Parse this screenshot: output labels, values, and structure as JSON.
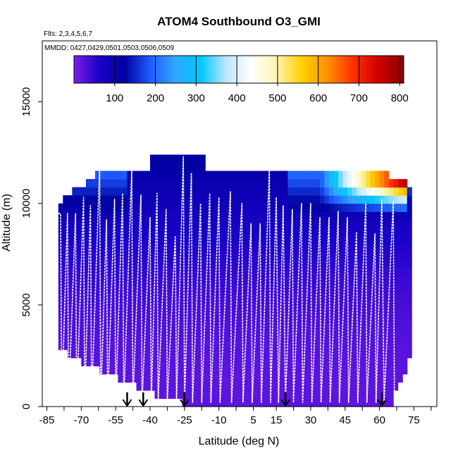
{
  "chart_data": {
    "type": "heatmap",
    "title": "ATOM4 Southbound O3_GMI",
    "subtitle_flights": "Flts: 2,3,4,5,6,7",
    "subtitle_dates": "MMDD: 0427,0429,0501,0503,0506,0509",
    "xlabel": "Latitude (deg N)",
    "ylabel": "Altitude (m)",
    "xlim": [
      -87,
      85
    ],
    "ylim": [
      0,
      18000
    ],
    "x_ticks": [
      -85,
      -70,
      -55,
      -40,
      -25,
      -10,
      5,
      15,
      30,
      45,
      60,
      75
    ],
    "x_minor_ticks": [
      -77.5,
      -62.5,
      -47.5,
      -32.5,
      -17.5,
      -2.5,
      22.5,
      37.5,
      52.5,
      67.5,
      82.5
    ],
    "y_ticks": [
      0,
      5000,
      10000,
      15000
    ],
    "colorbar": {
      "ticks": [
        100,
        200,
        300,
        400,
        500,
        600,
        700,
        800
      ],
      "range": [
        0,
        810
      ],
      "colors": [
        "#7b1fe8",
        "#1a00c8",
        "#0000a0",
        "#1e5bff",
        "#2fa8ff",
        "#00c8ff",
        "#bfe6ff",
        "#ffffff",
        "#fff4b0",
        "#ffd000",
        "#ff9000",
        "#ff3000",
        "#d00000",
        "#8b0000"
      ]
    },
    "curtain": {
      "lat_range": [
        -80,
        73
      ],
      "top_altitude": 11500,
      "upper_troposphere_o3": 110,
      "lower_troposphere_o3": 20,
      "high_o3_layer": {
        "lat_range": [
          32,
          72
        ],
        "alt_range": [
          10200,
          11500
        ],
        "peak_o3": 780
      }
    },
    "flight_track": {
      "name": "Flight track",
      "lat": [
        -80,
        -79,
        -78.5,
        -76,
        -75.5,
        -72.5,
        -72,
        -69,
        -68.5,
        -66,
        -65.5,
        -62,
        -61.5,
        -59,
        -58.5,
        -55.5,
        -55,
        -52,
        -51.5,
        -48,
        -47.5,
        -44,
        -43.5,
        -40,
        -39.5,
        -37,
        -36.5,
        -33,
        -32.5,
        -29,
        -28.5,
        -25.5,
        -25,
        -22,
        -21.5,
        -18,
        -17.5,
        -14,
        -13.5,
        -10,
        -9.5,
        -5,
        -4.5,
        0,
        0.5,
        4,
        4.5,
        8,
        8.5,
        12,
        12.5,
        15,
        16,
        18,
        19,
        22,
        22.5,
        26,
        26.5,
        30,
        30.5,
        34,
        34.5,
        38,
        38.5,
        42,
        42.5,
        46,
        46.5,
        50,
        50.5,
        54,
        54.5,
        58,
        58.5,
        61,
        62,
        66,
        66.5,
        70,
        71
      ],
      "altitude": [
        9500,
        9500,
        200,
        9500,
        200,
        9500,
        200,
        10300,
        200,
        9900,
        200,
        11800,
        200,
        9200,
        200,
        10200,
        200,
        10500,
        200,
        11700,
        200,
        10400,
        200,
        9300,
        200,
        10500,
        200,
        9700,
        200,
        8400,
        200,
        12300,
        200,
        11500,
        200,
        10000,
        200,
        10500,
        200,
        10300,
        200,
        10600,
        200,
        10000,
        200,
        9000,
        200,
        9000,
        200,
        11700,
        200,
        10300,
        200,
        9900,
        200,
        9700,
        200,
        10000,
        200,
        10000,
        200,
        9300,
        200,
        9300,
        200,
        9600,
        200,
        9300,
        200,
        8600,
        200,
        10000,
        200,
        8500,
        200,
        10200,
        200,
        10100,
        200
      ]
    },
    "markers": {
      "type": "downward-arrow",
      "lat": [
        -50,
        -43,
        -25,
        19,
        61
      ]
    }
  }
}
